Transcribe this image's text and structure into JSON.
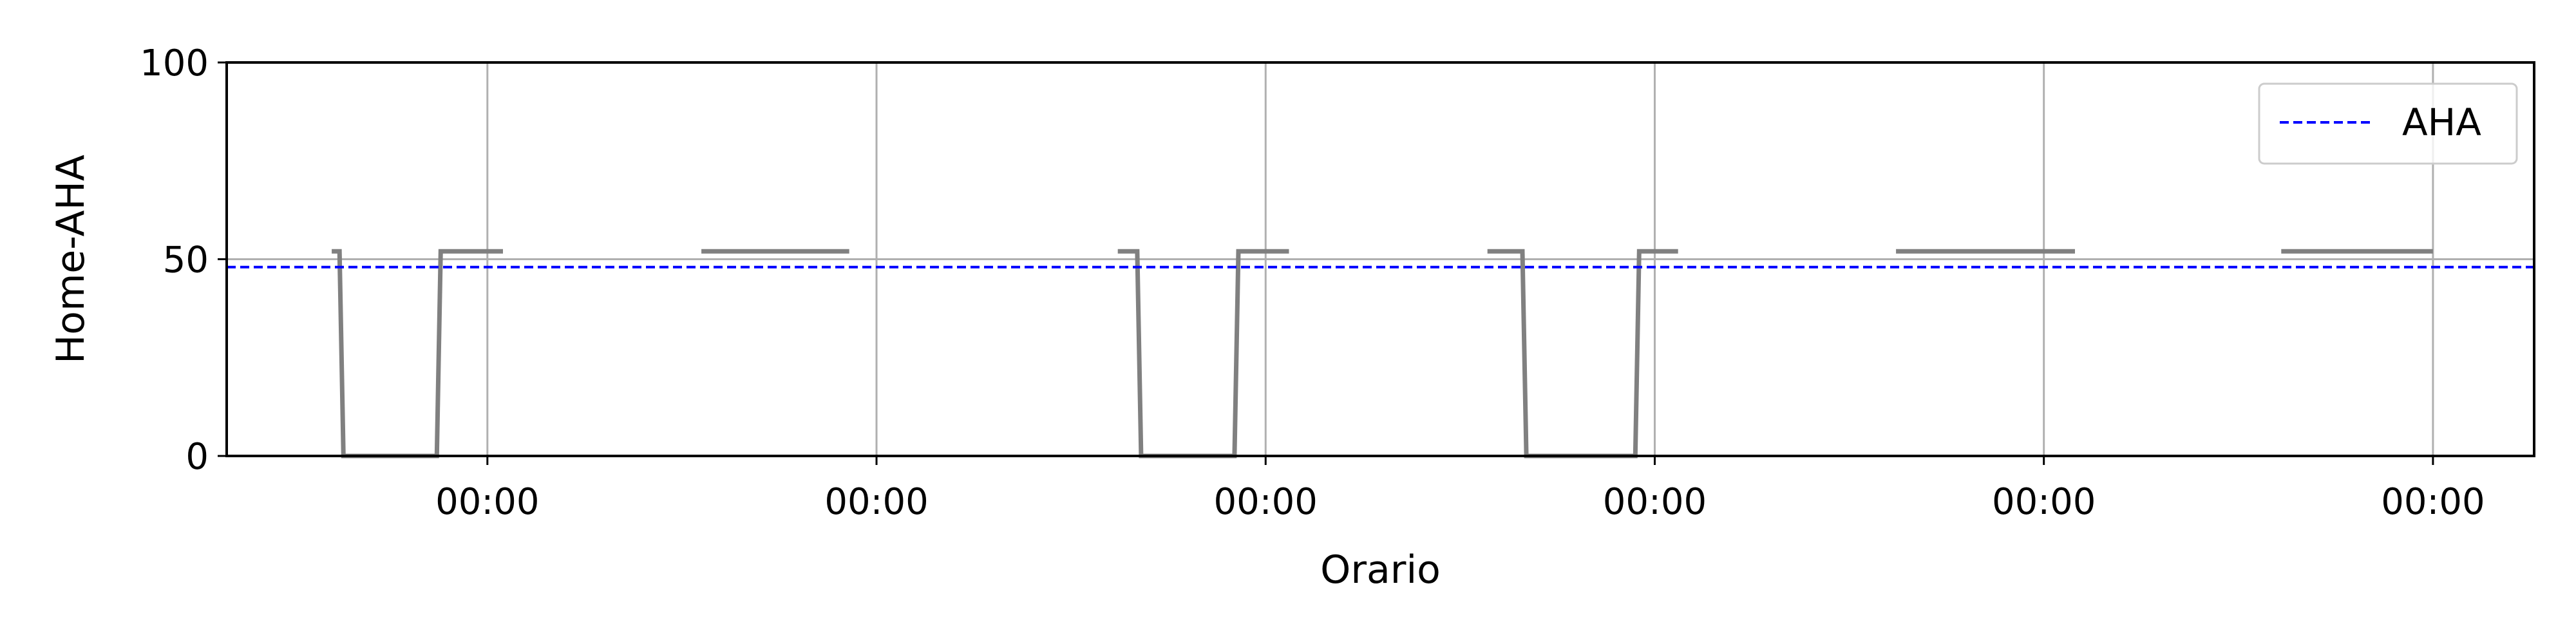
{
  "chart_data": {
    "type": "line",
    "title": "",
    "xlabel": "Orario",
    "ylabel": "Home-AHA",
    "ylim": [
      0,
      100
    ],
    "yticks": [
      0,
      50,
      100
    ],
    "xlim": [
      -0.67,
      5.26
    ],
    "xticks": [
      0,
      1,
      2,
      3,
      4,
      5
    ],
    "xtick_labels": [
      "00:00",
      "00:00",
      "00:00",
      "00:00",
      "00:00",
      "00:00"
    ],
    "grid": true,
    "legend": {
      "position": "top-right",
      "entries": [
        "AHA"
      ]
    },
    "series": [
      {
        "name": "",
        "color": "#808080",
        "style": "solid",
        "segments": [
          [
            [
              -0.4,
              52
            ],
            [
              -0.38,
              52
            ],
            [
              -0.37,
              0
            ],
            [
              -0.13,
              0
            ],
            [
              -0.12,
              52
            ],
            [
              0.04,
              52
            ]
          ],
          [
            [
              0.55,
              52
            ],
            [
              0.93,
              52
            ]
          ],
          [
            [
              1.62,
              52
            ],
            [
              1.67,
              52
            ],
            [
              1.68,
              0
            ],
            [
              1.92,
              0
            ],
            [
              1.93,
              52
            ],
            [
              2.06,
              52
            ]
          ],
          [
            [
              2.57,
              52
            ],
            [
              2.66,
              52
            ],
            [
              2.67,
              0
            ],
            [
              2.95,
              0
            ],
            [
              2.96,
              52
            ],
            [
              3.06,
              52
            ]
          ],
          [
            [
              3.62,
              52
            ],
            [
              4.08,
              52
            ]
          ],
          [
            [
              4.61,
              52
            ],
            [
              5.0,
              52
            ]
          ]
        ]
      },
      {
        "name": "AHA",
        "color": "#0000ff",
        "style": "dashed",
        "constant": 48
      }
    ]
  }
}
